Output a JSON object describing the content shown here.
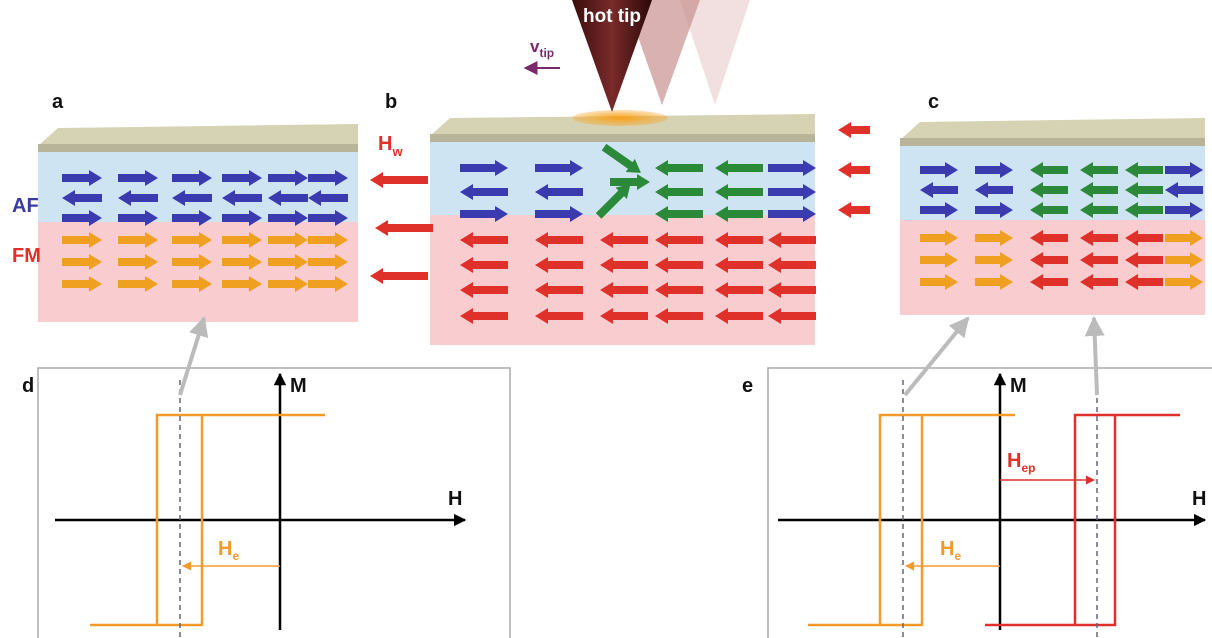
{
  "panels": {
    "a": "a",
    "b": "b",
    "c": "c",
    "d": "d",
    "e": "e"
  },
  "tip": {
    "label": "hot tip",
    "velocity": {
      "main": "v",
      "sub": "tip"
    }
  },
  "field": {
    "main": "H",
    "sub": "w"
  },
  "layers": {
    "af": "AF",
    "fm": "FM"
  },
  "graph_d": {
    "y_axis": "M",
    "x_axis": "H",
    "shift": {
      "main": "H",
      "sub": "e"
    }
  },
  "graph_e": {
    "y_axis": "M",
    "x_axis": "H",
    "shift": {
      "main": "H",
      "sub": "e"
    },
    "shift_ep": {
      "main": "H",
      "sub": "ep"
    }
  }
}
